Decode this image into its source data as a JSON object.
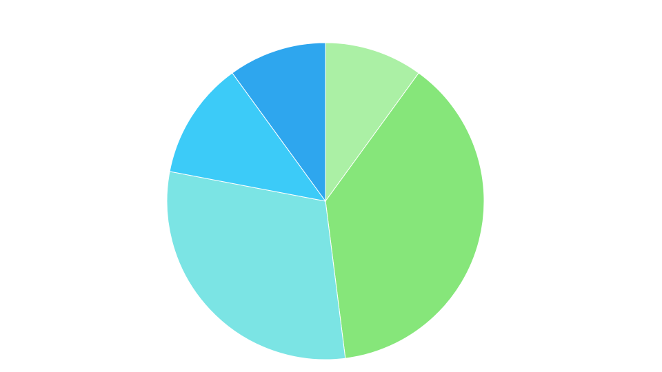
{
  "chart_data": {
    "type": "pie",
    "values": [
      10,
      38,
      30,
      12,
      10
    ],
    "colors": [
      "#abf0a5",
      "#86e67a",
      "#7be4e4",
      "#3ccbf8",
      "#2ea6ee"
    ]
  }
}
